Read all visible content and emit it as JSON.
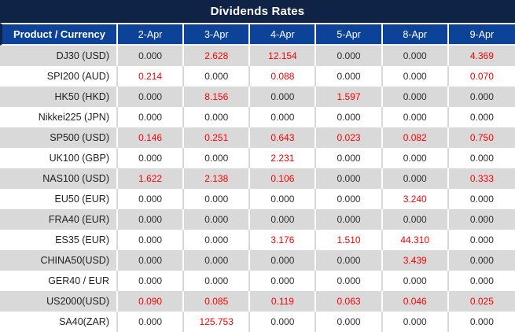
{
  "title": "Dividends Rates",
  "table": {
    "product_header": "Product / Currency",
    "date_headers": [
      "2-Apr",
      "3-Apr",
      "4-Apr",
      "5-Apr",
      "8-Apr",
      "9-Apr"
    ],
    "rows": [
      {
        "product": "DJ30 (USD)",
        "values": [
          "0.000",
          "2.628",
          "12.154",
          "0.000",
          "0.000",
          "4.369"
        ]
      },
      {
        "product": "SPI200 (AUD)",
        "values": [
          "0.214",
          "0.000",
          "0.088",
          "0.000",
          "0.000",
          "0.070"
        ]
      },
      {
        "product": "HK50 (HKD)",
        "values": [
          "0.000",
          "8.156",
          "0.000",
          "1.597",
          "0.000",
          "0.000"
        ]
      },
      {
        "product": "Nikkei225 (JPN)",
        "values": [
          "0.000",
          "0.000",
          "0.000",
          "0.000",
          "0.000",
          "0.000"
        ]
      },
      {
        "product": "SP500 (USD)",
        "values": [
          "0.146",
          "0.251",
          "0.643",
          "0.023",
          "0.082",
          "0.750"
        ]
      },
      {
        "product": "UK100 (GBP)",
        "values": [
          "0.000",
          "0.000",
          "2.231",
          "0.000",
          "0.000",
          "0.000"
        ]
      },
      {
        "product": "NAS100 (USD)",
        "values": [
          "1.622",
          "2.138",
          "0.106",
          "0.000",
          "0.000",
          "0.333"
        ]
      },
      {
        "product": "EU50 (EUR)",
        "values": [
          "0.000",
          "0.000",
          "0.000",
          "0.000",
          "3.240",
          "0.000"
        ]
      },
      {
        "product": "FRA40 (EUR)",
        "values": [
          "0.000",
          "0.000",
          "0.000",
          "0.000",
          "0.000",
          "0.000"
        ]
      },
      {
        "product": "ES35 (EUR)",
        "values": [
          "0.000",
          "0.000",
          "3.176",
          "1.510",
          "44.310",
          "0.000"
        ]
      },
      {
        "product": "CHINA50(USD)",
        "values": [
          "0.000",
          "0.000",
          "0.000",
          "0.000",
          "3.439",
          "0.000"
        ]
      },
      {
        "product": "GER40 / EUR",
        "values": [
          "0.000",
          "0.000",
          "0.000",
          "0.000",
          "0.000",
          "0.000"
        ]
      },
      {
        "product": "US2000(USD)",
        "values": [
          "0.090",
          "0.085",
          "0.119",
          "0.063",
          "0.046",
          "0.025"
        ]
      },
      {
        "product": "SA40(ZAR)",
        "values": [
          "0.000",
          "125.753",
          "0.000",
          "0.000",
          "0.000",
          "0.000"
        ]
      }
    ]
  },
  "colors": {
    "title_bar_bg": "#0f2347",
    "header_bg": "#0d4299",
    "header_text": "#ffffff",
    "row_alt_bg": "#d9d9d9",
    "row_bg": "#ffffff",
    "value_zero": "#2e2e2e",
    "value_nonzero": "#fe0000"
  },
  "zero_value": "0.000"
}
